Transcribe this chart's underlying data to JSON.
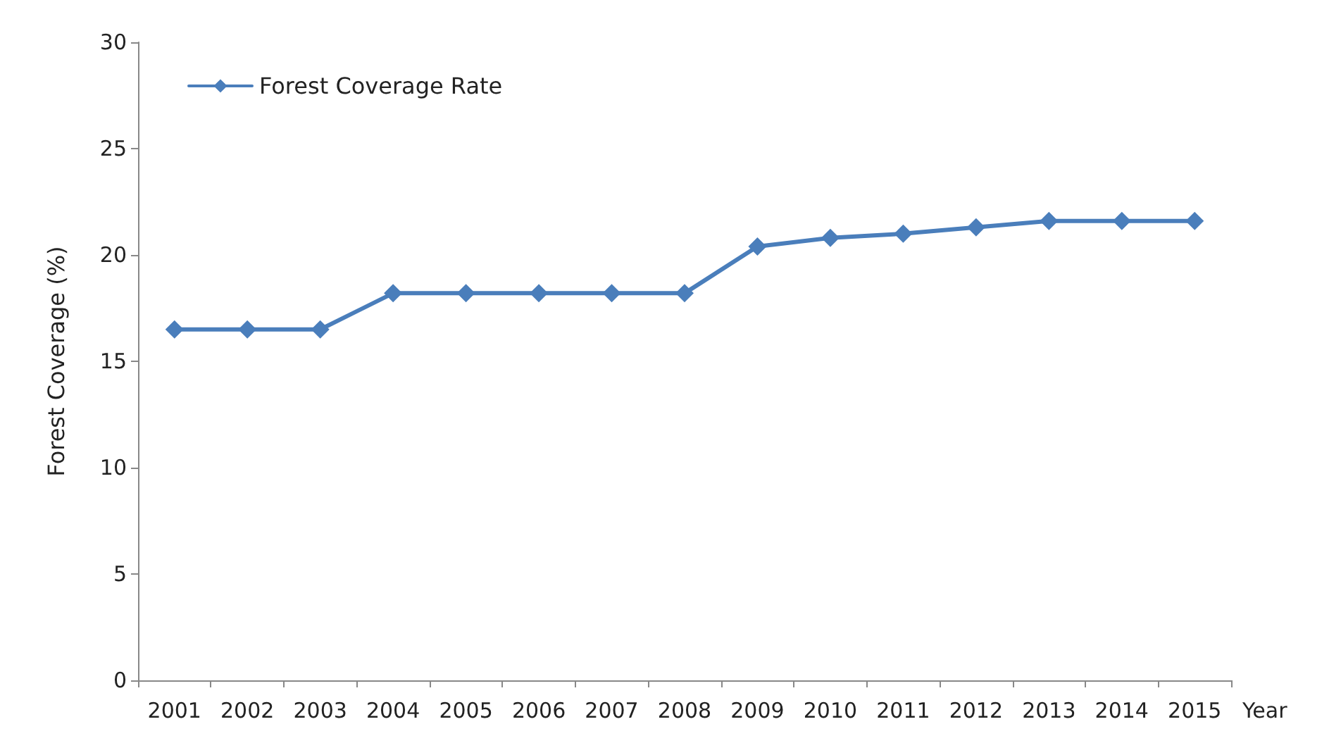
{
  "chart_data": {
    "type": "line",
    "xlabel": "Year",
    "ylabel": "Forest Coverage (%)",
    "categories": [
      "2001",
      "2002",
      "2003",
      "2004",
      "2005",
      "2006",
      "2007",
      "2008",
      "2009",
      "2010",
      "2011",
      "2012",
      "2013",
      "2014",
      "2015"
    ],
    "series": [
      {
        "name": "Forest Coverage Rate",
        "color": "#4a7ebb",
        "values": [
          16.5,
          16.5,
          16.5,
          18.2,
          18.2,
          18.2,
          18.2,
          18.2,
          20.4,
          20.8,
          21.0,
          21.3,
          21.6,
          21.6,
          21.6
        ]
      }
    ],
    "ylim": [
      0,
      30
    ],
    "yticks": [
      0,
      5,
      10,
      15,
      20,
      25,
      30
    ],
    "grid": false,
    "legend": "top left",
    "marker": "diamond",
    "line_style": "solid"
  }
}
